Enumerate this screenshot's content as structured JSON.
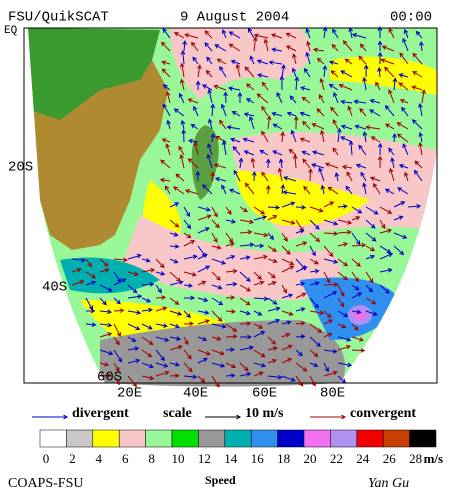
{
  "header": {
    "source": "FSU/QuikSCAT",
    "date": "9 August 2004",
    "time": "00:00"
  },
  "map": {
    "lat_labels": [
      "EQ",
      "20S",
      "40S",
      "60S"
    ],
    "lon_labels": [
      "20E",
      "40E",
      "60E",
      "80E"
    ]
  },
  "legend": {
    "divergent": "divergent",
    "scale": "scale",
    "scale_value": "10 m/s",
    "convergent": "convergent",
    "divergent_color": "#0000c8",
    "convergent_color": "#a00000"
  },
  "colorbar": {
    "colors": [
      "#ffffff",
      "#c8c8c8",
      "#ffff00",
      "#f8c8c8",
      "#98f898",
      "#00e000",
      "#989898",
      "#00b0b0",
      "#3090f0",
      "#0000c8",
      "#f070f0",
      "#b090f0",
      "#f00000",
      "#c84000",
      "#000000"
    ],
    "ticks": [
      0,
      2,
      4,
      6,
      8,
      10,
      12,
      14,
      16,
      18,
      20,
      22,
      24,
      26,
      28
    ],
    "unit": "m/s",
    "label": "Speed"
  },
  "footer": {
    "left": "COAPS-FSU",
    "right": "Yan Gu"
  }
}
